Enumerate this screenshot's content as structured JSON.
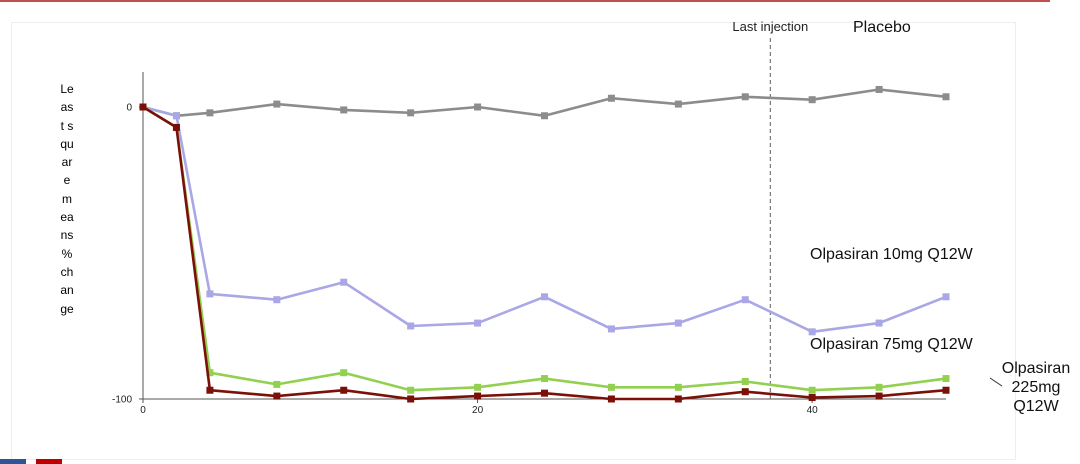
{
  "chart_data": {
    "type": "line",
    "title": "",
    "xlabel": "",
    "ylabel": "Least square means % change",
    "xlim": [
      0,
      48
    ],
    "ylim": [
      -100,
      12
    ],
    "x_ticks": [
      0,
      20,
      40
    ],
    "y_ticks": [
      0,
      -100
    ],
    "grid": false,
    "annotation": {
      "label": "Last injection",
      "x": 37.5,
      "style": "dashed vertical line"
    },
    "series": [
      {
        "name": "Placebo",
        "color": "#8c8c8c",
        "x": [
          0,
          2,
          4,
          8,
          12,
          16,
          20,
          24,
          28,
          32,
          36,
          40,
          44,
          48
        ],
        "y": [
          0,
          -3,
          -2,
          1,
          -1,
          -2,
          0,
          -3,
          3,
          1,
          3.5,
          2.5,
          6,
          3.5
        ]
      },
      {
        "name": "Olpasiran 10mg Q12W",
        "color": "#a9a7e6",
        "x": [
          0,
          2,
          4,
          8,
          12,
          16,
          20,
          24,
          28,
          32,
          36,
          40,
          44,
          48
        ],
        "y": [
          0,
          -3,
          -64,
          -66,
          -60,
          -75,
          -74,
          -65,
          -76,
          -74,
          -66,
          -77,
          -74,
          -65
        ]
      },
      {
        "name": "Olpasiran 75mg Q12W",
        "color": "#92d050",
        "x": [
          0,
          2,
          4,
          8,
          12,
          16,
          20,
          24,
          28,
          32,
          36,
          40,
          44,
          48
        ],
        "y": [
          0,
          -7,
          -91,
          -95,
          -91,
          -97,
          -96,
          -93,
          -96,
          -96,
          -94,
          -97,
          -96,
          -93
        ]
      },
      {
        "name": "Olpasiran 225mg Q12W",
        "color": "#7b1008",
        "x": [
          0,
          2,
          4,
          8,
          12,
          16,
          20,
          24,
          28,
          32,
          36,
          40,
          44,
          48
        ],
        "y": [
          0,
          -7,
          -97,
          -99,
          -97,
          -100,
          -99,
          -98,
          -100,
          -100,
          -97.5,
          -99.5,
          -99,
          -97
        ]
      }
    ],
    "series_labels": [
      "Placebo",
      "Olpasiran 10mg Q12W",
      "Olpasiran 75mg Q12W",
      "Olpasiran\n225mg\nQ12W"
    ]
  }
}
